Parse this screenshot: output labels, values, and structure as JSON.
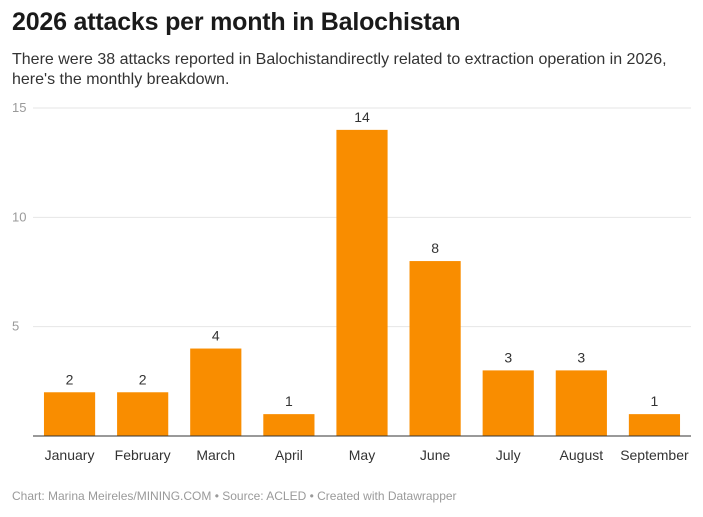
{
  "title": "2026 attacks per month in Balochistan",
  "subtitle": "There were 38 attacks reported in Balochistandirectly related to extraction operation in 2026, here's the monthly breakdown.",
  "footer": "Chart: Marina Meireles/MINING.COM • Source: ACLED • Created with Datawrapper",
  "colors": {
    "bar": "#f98d00",
    "gridline": "#e6e6e6",
    "baseline": "#333333"
  },
  "chart_data": {
    "type": "bar",
    "title": "2026 attacks per month in Balochistan",
    "categories": [
      "January",
      "February",
      "March",
      "April",
      "May",
      "June",
      "July",
      "August",
      "September"
    ],
    "values": [
      2,
      2,
      4,
      1,
      14,
      8,
      3,
      3,
      1
    ],
    "data_labels": [
      "2",
      "2",
      "4",
      "1",
      "14",
      "8",
      "3",
      "3",
      "1"
    ],
    "ylim": [
      0,
      15
    ],
    "yticks": [
      5,
      10,
      15
    ],
    "ytick_labels": [
      "5",
      "10",
      "15"
    ],
    "grid": true,
    "legend": "none"
  }
}
